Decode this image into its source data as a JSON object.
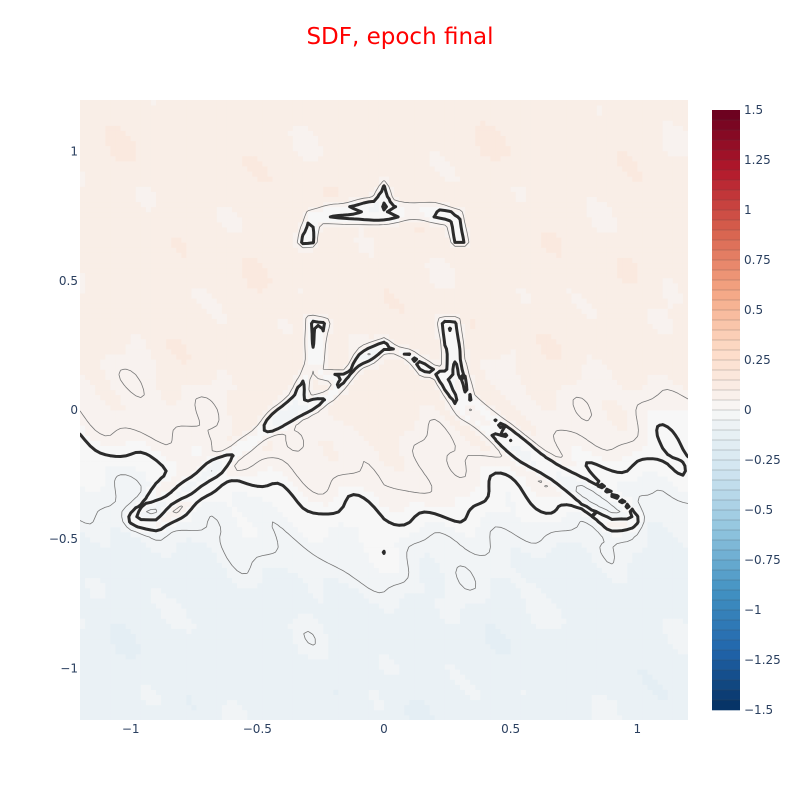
{
  "title": "SDF, epoch final",
  "colors": {
    "title": "#ff0000",
    "tick_text": "#2a3f5f",
    "zero_contour": "#2b2b2b",
    "fine_contour": "#777777",
    "colorscale": [
      "#053061",
      "#2166ac",
      "#4393c3",
      "#92c5de",
      "#d1e5f0",
      "#f7f7f7",
      "#fddbc7",
      "#f4a582",
      "#d6604d",
      "#b2182b",
      "#67001f"
    ]
  },
  "chart_data": {
    "type": "contour",
    "title": "SDF, epoch final",
    "xlabel": "",
    "ylabel": "",
    "xlim": [
      -1.2,
      1.2
    ],
    "ylim": [
      -1.2,
      1.2
    ],
    "xticks": [
      -1,
      -0.5,
      0,
      0.5,
      1
    ],
    "yticks": [
      -1,
      -0.5,
      0,
      0.5,
      1
    ],
    "xtick_labels": [
      "−1",
      "−0.5",
      "0",
      "0.5",
      "1"
    ],
    "ytick_labels": [
      "−1",
      "−0.5",
      "0",
      "0.5",
      "1"
    ],
    "zlim": [
      -1.5,
      1.5
    ],
    "contour_step": 0.05,
    "zero_contour_bold": true,
    "grid": false,
    "colorbar": {
      "ticks": [
        1.5,
        1.25,
        1,
        0.75,
        0.5,
        0.25,
        0,
        -0.25,
        -0.5,
        -0.75,
        -1,
        -1.25,
        -1.5
      ],
      "tick_labels": [
        "1.5",
        "1.25",
        "1",
        "0.75",
        "0.5",
        "0.25",
        "0",
        "−0.25",
        "−0.5",
        "−0.75",
        "−1",
        "−1.25",
        "−1.5"
      ]
    },
    "zero_level_shape": {
      "description_regions": [
        {
          "name": "top-bar",
          "points": [
            [
              -0.32,
              0.65
            ],
            [
              -0.3,
              0.76
            ],
            [
              -0.2,
              0.79
            ],
            [
              -0.03,
              0.8
            ],
            [
              0,
              0.87
            ],
            [
              0.03,
              0.8
            ],
            [
              0.2,
              0.79
            ],
            [
              0.3,
              0.76
            ],
            [
              0.32,
              0.65
            ],
            [
              0.28,
              0.65
            ],
            [
              0.26,
              0.73
            ],
            [
              0.1,
              0.74
            ],
            [
              -0.1,
              0.74
            ],
            [
              -0.26,
              0.73
            ],
            [
              -0.28,
              0.65
            ]
          ]
        },
        {
          "name": "inverted-v",
          "points": [
            [
              -0.98,
              -0.42
            ],
            [
              -0.95,
              -0.38
            ],
            [
              -0.6,
              -0.15
            ],
            [
              -0.35,
              0.05
            ],
            [
              -0.3,
              0.2
            ],
            [
              -0.29,
              0.35
            ],
            [
              -0.23,
              0.34
            ],
            [
              -0.25,
              0.15
            ],
            [
              -0.15,
              0.14
            ],
            [
              -0.1,
              0.2
            ],
            [
              0,
              0.26
            ],
            [
              0.1,
              0.2
            ],
            [
              0.15,
              0.14
            ],
            [
              0.25,
              0.15
            ],
            [
              0.23,
              0.34
            ],
            [
              0.29,
              0.35
            ],
            [
              0.3,
              0.2
            ],
            [
              0.35,
              0.05
            ],
            [
              0.6,
              -0.15
            ],
            [
              0.95,
              -0.38
            ],
            [
              0.98,
              -0.42
            ],
            [
              0.9,
              -0.43
            ],
            [
              0.55,
              -0.2
            ],
            [
              0.3,
              -0.02
            ],
            [
              0.2,
              0.15
            ],
            [
              0.1,
              0.22
            ],
            [
              0,
              0.24
            ],
            [
              -0.1,
              0.18
            ],
            [
              -0.2,
              0.05
            ],
            [
              -0.4,
              -0.05
            ],
            [
              -0.9,
              -0.43
            ]
          ]
        }
      ]
    }
  }
}
